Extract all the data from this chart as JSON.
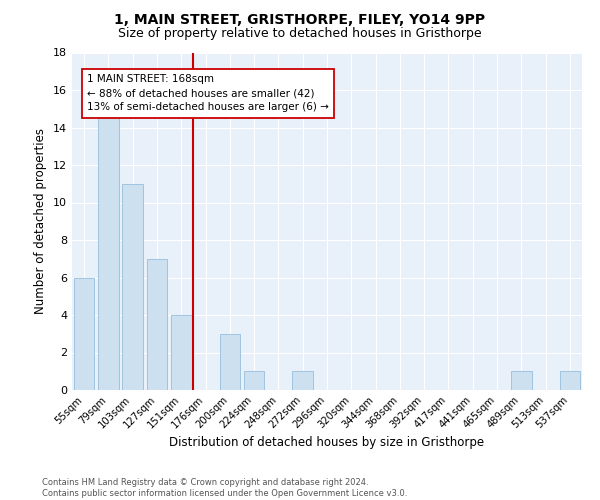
{
  "title1": "1, MAIN STREET, GRISTHORPE, FILEY, YO14 9PP",
  "title2": "Size of property relative to detached houses in Gristhorpe",
  "xlabel": "Distribution of detached houses by size in Gristhorpe",
  "ylabel": "Number of detached properties",
  "categories": [
    "55sqm",
    "79sqm",
    "103sqm",
    "127sqm",
    "151sqm",
    "176sqm",
    "200sqm",
    "224sqm",
    "248sqm",
    "272sqm",
    "296sqm",
    "320sqm",
    "344sqm",
    "368sqm",
    "392sqm",
    "417sqm",
    "441sqm",
    "465sqm",
    "489sqm",
    "513sqm",
    "537sqm"
  ],
  "values": [
    6,
    15,
    11,
    7,
    4,
    0,
    3,
    1,
    0,
    1,
    0,
    0,
    0,
    0,
    0,
    0,
    0,
    0,
    1,
    0,
    1
  ],
  "bar_color": "#cce0f0",
  "bar_edge_color": "#a0c4e0",
  "background_color": "#e8f0fa",
  "annotation_line1": "1 MAIN STREET: 168sqm",
  "annotation_line2": "← 88% of detached houses are smaller (42)",
  "annotation_line3": "13% of semi-detached houses are larger (6) →",
  "ref_line_color": "#cc0000",
  "annotation_box_edge_color": "#cc0000",
  "ylim": [
    0,
    18
  ],
  "yticks": [
    0,
    2,
    4,
    6,
    8,
    10,
    12,
    14,
    16,
    18
  ],
  "footnote": "Contains HM Land Registry data © Crown copyright and database right 2024.\nContains public sector information licensed under the Open Government Licence v3.0."
}
